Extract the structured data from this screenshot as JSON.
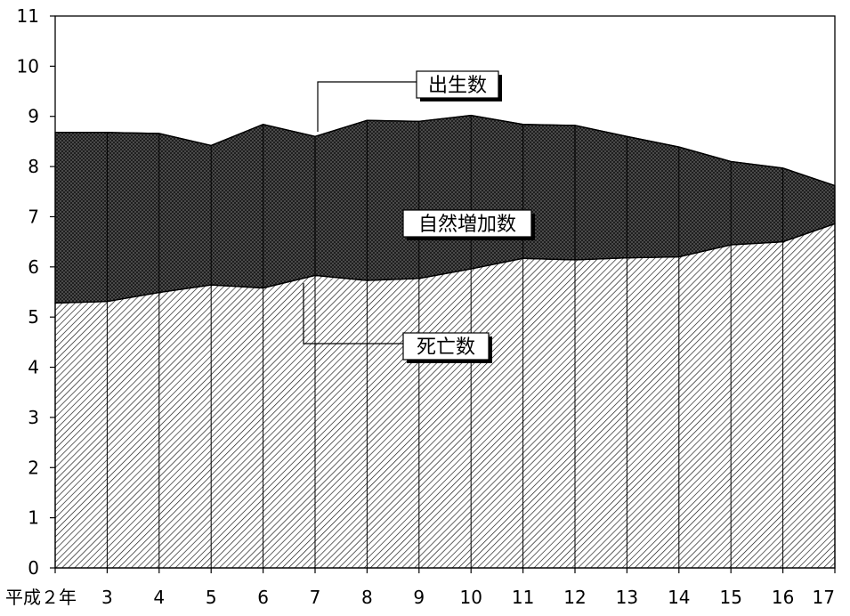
{
  "chart_data": {
    "type": "area",
    "categories": [
      "平成２年",
      "3",
      "4",
      "5",
      "6",
      "7",
      "8",
      "9",
      "10",
      "11",
      "12",
      "13",
      "14",
      "15",
      "16",
      "17"
    ],
    "series": [
      {
        "name": "死亡数",
        "values": [
          5.28,
          5.31,
          5.49,
          5.64,
          5.58,
          5.83,
          5.73,
          5.77,
          5.96,
          6.17,
          6.14,
          6.18,
          6.2,
          6.44,
          6.5,
          6.86
        ]
      },
      {
        "name": "出生数",
        "values": [
          8.68,
          8.68,
          8.66,
          8.42,
          8.84,
          8.6,
          8.92,
          8.9,
          9.02,
          8.84,
          8.82,
          8.6,
          8.39,
          8.1,
          7.97,
          7.62
        ]
      }
    ],
    "ylim": [
      0,
      11
    ],
    "yticks": [
      "0",
      "1",
      "2",
      "3",
      "4",
      "5",
      "6",
      "7",
      "8",
      "9",
      "10",
      "11"
    ],
    "grid": false,
    "annotations": {
      "births": "出生数",
      "natural_increase": "自然増加数",
      "deaths": "死亡数"
    }
  }
}
